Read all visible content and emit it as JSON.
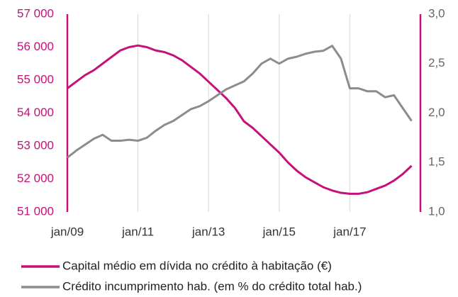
{
  "chart_data": {
    "type": "line",
    "x": [
      2009,
      2009.25,
      2009.5,
      2009.75,
      2010,
      2010.25,
      2010.5,
      2010.75,
      2011,
      2011.25,
      2011.5,
      2011.75,
      2012,
      2012.25,
      2012.5,
      2012.75,
      2013,
      2013.25,
      2013.5,
      2013.75,
      2014,
      2014.25,
      2014.5,
      2014.75,
      2015,
      2015.25,
      2015.5,
      2015.75,
      2016,
      2016.25,
      2016.5,
      2016.75,
      2017,
      2017.25,
      2017.5,
      2017.75,
      2018,
      2018.25,
      2018.5,
      2018.75
    ],
    "series": [
      {
        "name": "Capital médio em dívida no crédito à habitação (€)",
        "color": "#c8107a",
        "values": [
          54750,
          54950,
          55150,
          55300,
          55500,
          55700,
          55900,
          56000,
          56050,
          56000,
          55900,
          55850,
          55750,
          55600,
          55400,
          55200,
          54950,
          54700,
          54450,
          54150,
          53750,
          53550,
          53300,
          53050,
          52800,
          52500,
          52250,
          52050,
          51900,
          51750,
          51650,
          51580,
          51550,
          51550,
          51600,
          51700,
          51800,
          51950,
          52150,
          52400
        ]
      },
      {
        "name": "Crédito incumprimento hab. (em % do crédito total hab.)",
        "color": "#8c8c8c",
        "axis": "y2",
        "values": [
          1.55,
          1.62,
          1.68,
          1.74,
          1.78,
          1.72,
          1.72,
          1.73,
          1.72,
          1.75,
          1.82,
          1.88,
          1.92,
          1.98,
          2.04,
          2.07,
          2.12,
          2.18,
          2.24,
          2.28,
          2.32,
          2.4,
          2.5,
          2.55,
          2.5,
          2.55,
          2.57,
          2.6,
          2.62,
          2.63,
          2.68,
          2.55,
          2.25,
          2.25,
          2.22,
          2.22,
          2.16,
          2.18,
          2.05,
          1.92
        ]
      }
    ],
    "xlim": [
      2009,
      2019
    ],
    "xticks": [
      {
        "value": 2009,
        "label": "jan/09"
      },
      {
        "value": 2011,
        "label": "jan/11"
      },
      {
        "value": 2013,
        "label": "jan/13"
      },
      {
        "value": 2015,
        "label": "jan/15"
      },
      {
        "value": 2017,
        "label": "jan/17"
      }
    ],
    "ylim": [
      51000,
      57000
    ],
    "yticks": [
      {
        "value": 51000,
        "label": "51 000"
      },
      {
        "value": 52000,
        "label": "52 000"
      },
      {
        "value": 53000,
        "label": "53 000"
      },
      {
        "value": 54000,
        "label": "54 000"
      },
      {
        "value": 55000,
        "label": "55 000"
      },
      {
        "value": 56000,
        "label": "56 000"
      },
      {
        "value": 57000,
        "label": "57 000"
      }
    ],
    "y2lim": [
      1,
      3
    ],
    "y2ticks": [
      {
        "value": 1,
        "label": "1,0"
      },
      {
        "value": 1.5,
        "label": "1,5"
      },
      {
        "value": 2,
        "label": "2,0"
      },
      {
        "value": 2.5,
        "label": "2,5"
      },
      {
        "value": 3,
        "label": "3,0"
      }
    ],
    "grid": true,
    "legend": "bottom"
  }
}
